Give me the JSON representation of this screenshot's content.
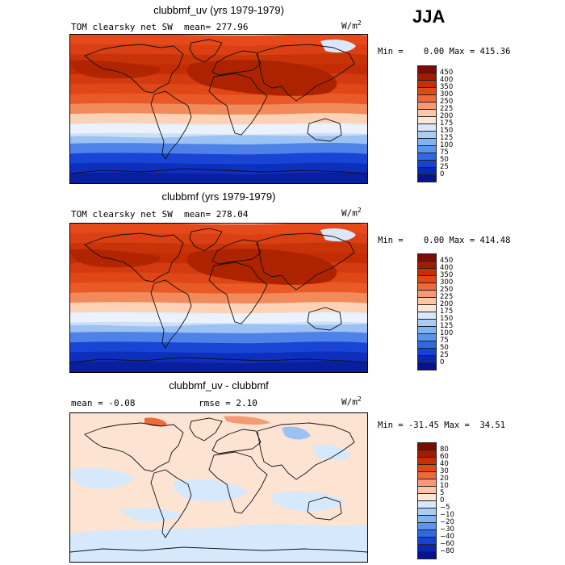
{
  "season": "JJA",
  "panels": [
    {
      "title": "clubbmf_uv (yrs 1979-1979)",
      "variable": "TOM clearsky net SW",
      "mean_text": "mean= 277.96",
      "units_base": "W/m",
      "units_exp": "2",
      "min_label": "Min =",
      "min_value": "0.00",
      "max_label": "Max =",
      "max_value": "415.36",
      "colorbar": {
        "labels": [
          "450",
          "400",
          "350",
          "300",
          "250",
          "225",
          "200",
          "175",
          "150",
          "125",
          "100",
          "75",
          "50",
          "25",
          "0"
        ],
        "colors": [
          "#7a0d00",
          "#a41a00",
          "#c72e00",
          "#de4a12",
          "#ec6a3b",
          "#f59a74",
          "#fbc6a9",
          "#fde6d6",
          "#d7e8fb",
          "#aacdf6",
          "#80b3f2",
          "#5a94ee",
          "#3068e6",
          "#1543d6",
          "#0a27b3",
          "#06138a"
        ]
      },
      "map": {
        "bands": [
          "#e64a1b",
          "#da4013",
          "#c93308",
          "#c42d04",
          "#d43a0f",
          "#df4716",
          "#ea5a26",
          "#f38a5c",
          "#fbd2b6",
          "#e6effa",
          "#9cc1f3",
          "#4f82e8",
          "#1a45d4",
          "#0d2fbd",
          "#0a1f9e"
        ],
        "hot_zone": "#ad2300",
        "ice": "#dbe8fb"
      }
    },
    {
      "title": "clubbmf (yrs 1979-1979)",
      "variable": "TOM clearsky net SW",
      "mean_text": "mean= 278.04",
      "units_base": "W/m",
      "units_exp": "2",
      "min_label": "Min =",
      "min_value": "0.00",
      "max_label": "Max =",
      "max_value": "414.48",
      "colorbar": {
        "labels": [
          "450",
          "400",
          "350",
          "300",
          "250",
          "225",
          "200",
          "175",
          "150",
          "125",
          "100",
          "75",
          "50",
          "25",
          "0"
        ],
        "colors": [
          "#7a0d00",
          "#a41a00",
          "#c72e00",
          "#de4a12",
          "#ec6a3b",
          "#f59a74",
          "#fbc6a9",
          "#fde6d6",
          "#d7e8fb",
          "#aacdf6",
          "#80b3f2",
          "#5a94ee",
          "#3068e6",
          "#1543d6",
          "#0a27b3",
          "#06138a"
        ]
      },
      "map": {
        "bands": [
          "#e64a1b",
          "#da4013",
          "#c93308",
          "#c42d04",
          "#d43a0f",
          "#df4716",
          "#ea5a26",
          "#f38a5c",
          "#fbd2b6",
          "#e6effa",
          "#9cc1f3",
          "#4f82e8",
          "#1a45d4",
          "#0d2fbd",
          "#0a1f9e"
        ],
        "hot_zone": "#ad2300",
        "ice": "#dbe8fb"
      }
    },
    {
      "title": "clubbmf_uv - clubbmf",
      "mean_text": "mean =  -0.08",
      "rmse_text": "rmse =   2.10",
      "units_base": "W/m",
      "units_exp": "2",
      "min_label": "Min =",
      "min_value": "-31.45",
      "max_label": "Max =",
      "max_value": "34.51",
      "colorbar": {
        "labels": [
          "80",
          "60",
          "40",
          "30",
          "20",
          "10",
          "5",
          "0",
          "−5",
          "−10",
          "−20",
          "−30",
          "−40",
          "−60",
          "−80"
        ],
        "colors": [
          "#7a0d00",
          "#a41a00",
          "#c72e00",
          "#de4a12",
          "#ec6a3b",
          "#f59a74",
          "#fbc6a9",
          "#fde6d6",
          "#d7e8fb",
          "#aacdf6",
          "#80b3f2",
          "#5a94ee",
          "#3068e6",
          "#1543d6",
          "#0a27b3",
          "#06138a"
        ]
      },
      "map": {
        "peach": "#fde3d2",
        "lightblue": "#d6e8fb",
        "blue": "#9cc1f3",
        "red": "#ec6a3b"
      }
    }
  ]
}
